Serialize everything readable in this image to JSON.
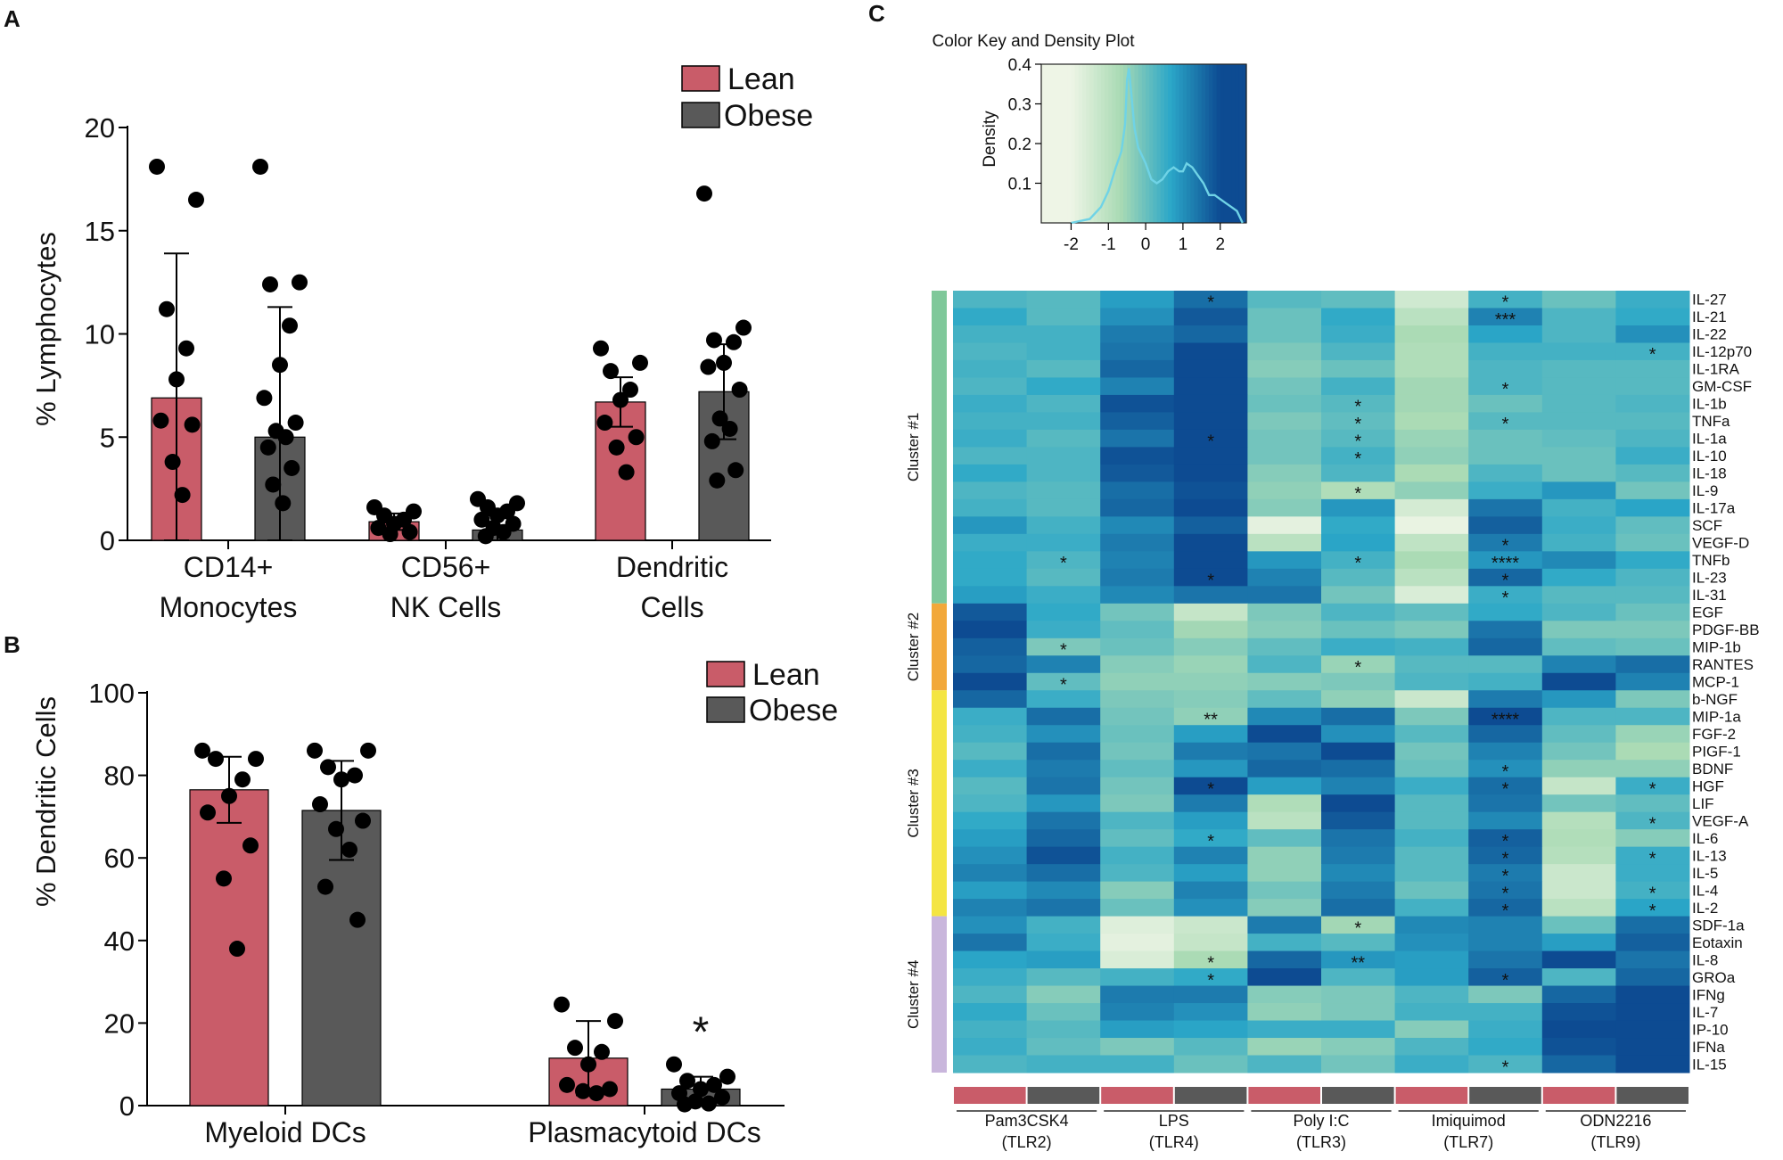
{
  "panel_labels": [
    "A",
    "B",
    "C"
  ],
  "colors": {
    "lean": "#c95c69",
    "obese": "#595959",
    "dot": "#000000"
  },
  "chart_data": [
    {
      "id": "A",
      "type": "bar",
      "ylabel": "% Lymphocytes",
      "ylim": [
        0,
        20
      ],
      "yticks": [
        0,
        5,
        10,
        15,
        20
      ],
      "categories": [
        [
          "CD14+",
          "Monocytes"
        ],
        [
          "CD56+",
          "NK Cells"
        ],
        [
          "Dendritic",
          "Cells"
        ]
      ],
      "legend": [
        "Lean",
        "Obese"
      ],
      "series": [
        {
          "name": "Lean",
          "color": "#c95c69",
          "values": [
            6.9,
            0.9,
            6.7
          ],
          "sd": [
            7.0,
            0.4,
            1.2
          ],
          "points": [
            [
              18.1,
              16.5,
              11.2,
              9.3,
              7.8,
              5.8,
              5.6,
              3.8,
              2.2
            ],
            [
              1.6,
              1.4,
              1.2,
              1.0,
              0.8,
              0.6,
              0.4,
              0.3
            ],
            [
              9.3,
              8.6,
              8.2,
              7.3,
              6.8,
              5.7,
              5.0,
              4.5,
              3.3
            ]
          ]
        },
        {
          "name": "Obese",
          "color": "#595959",
          "values": [
            5.0,
            0.5,
            7.2
          ],
          "sd": [
            6.3,
            0.7,
            2.3
          ],
          "points": [
            [
              18.1,
              12.5,
              12.4,
              10.4,
              8.5,
              6.9,
              5.7,
              5.3,
              5.0,
              4.5,
              3.5,
              2.7,
              1.8
            ],
            [
              2.0,
              1.8,
              1.6,
              1.4,
              1.2,
              1.0,
              0.8,
              0.6,
              0.4,
              0.2
            ],
            [
              16.8,
              10.3,
              9.7,
              9.6,
              8.6,
              8.4,
              7.3,
              5.9,
              5.4,
              4.8,
              3.4,
              2.9
            ]
          ]
        }
      ]
    },
    {
      "id": "B",
      "type": "bar",
      "ylabel": "% Dendritic Cells",
      "ylim": [
        0,
        100
      ],
      "yticks": [
        0,
        20,
        40,
        60,
        80,
        100
      ],
      "categories": [
        [
          "Myeloid DCs"
        ],
        [
          "Plasmacytoid DCs"
        ]
      ],
      "legend": [
        "Lean",
        "Obese"
      ],
      "significance": [
        {
          "category": 1,
          "series": "Obese",
          "label": "*"
        }
      ],
      "series": [
        {
          "name": "Lean",
          "color": "#c95c69",
          "values": [
            76.5,
            11.5
          ],
          "sd": [
            8.0,
            9.0
          ],
          "points": [
            [
              86,
              84,
              84,
              79,
              75,
              71,
              63,
              55,
              38
            ],
            [
              24.5,
              20.5,
              14.0,
              13.0,
              10.0,
              5.0,
              4.0,
              3.5,
              3.0
            ]
          ]
        },
        {
          "name": "Obese",
          "color": "#595959",
          "values": [
            71.5,
            4.0
          ],
          "sd": [
            12.0,
            3.0
          ],
          "points": [
            [
              86,
              86,
              82,
              80,
              79,
              73,
              69,
              67,
              62,
              53,
              45
            ],
            [
              10.0,
              7.0,
              6.0,
              5.0,
              4.0,
              3.0,
              2.0,
              1.0,
              0.5,
              0.3
            ]
          ]
        }
      ]
    },
    {
      "id": "C-density",
      "type": "area",
      "title": "Color Key and Density Plot",
      "ylabel": "Density",
      "xlim": [
        -2.8,
        2.7
      ],
      "ylim": [
        0,
        0.4
      ],
      "xticks": [
        -2,
        -1,
        0,
        1,
        2
      ],
      "xtick_labels": [
        "-2",
        "-1",
        "0",
        "1",
        "2"
      ],
      "yticks": [
        0.1,
        0.2,
        0.3,
        0.4
      ],
      "ytick_labels": [
        "0.1",
        "0.2",
        "0.3",
        "0.4"
      ],
      "x": [
        -2.0,
        -1.5,
        -1.2,
        -1.0,
        -0.8,
        -0.65,
        -0.55,
        -0.5,
        -0.45,
        -0.38,
        -0.3,
        -0.2,
        -0.1,
        0.0,
        0.15,
        0.3,
        0.45,
        0.6,
        0.75,
        0.9,
        1.0,
        1.1,
        1.25,
        1.4,
        1.55,
        1.7,
        1.85,
        2.0,
        2.15,
        2.3,
        2.45,
        2.6
      ],
      "y": [
        0.0,
        0.01,
        0.04,
        0.08,
        0.14,
        0.18,
        0.25,
        0.36,
        0.39,
        0.32,
        0.24,
        0.19,
        0.17,
        0.15,
        0.11,
        0.1,
        0.11,
        0.13,
        0.14,
        0.13,
        0.13,
        0.15,
        0.14,
        0.12,
        0.1,
        0.07,
        0.07,
        0.06,
        0.05,
        0.04,
        0.03,
        0.0
      ]
    },
    {
      "id": "C-heatmap",
      "type": "heatmap",
      "value_range": [
        -2,
        2
      ],
      "color_stops": [
        "#eef5e6",
        "#a9dab4",
        "#2ba7c8",
        "#0d4b92"
      ],
      "rows": [
        "IL-27",
        "IL-21",
        "IL-22",
        "IL-12p70",
        "IL-1RA",
        "GM-CSF",
        "IL-1b",
        "TNFa",
        "IL-1a",
        "IL-10",
        "IL-18",
        "IL-9",
        "IL-17a",
        "SCF",
        "VEGF-D",
        "TNFb",
        "IL-23",
        "IL-31",
        "EGF",
        "PDGF-BB",
        "MIP-1b",
        "RANTES",
        "MCP-1",
        "b-NGF",
        "MIP-1a",
        "FGF-2",
        "PIGF-1",
        "BDNF",
        "HGF",
        "LIF",
        "VEGF-A",
        "IL-6",
        "IL-13",
        "IL-5",
        "IL-4",
        "IL-2",
        "SDF-1a",
        "Eotaxin",
        "IL-8",
        "GROa",
        "IFNg",
        "IL-7",
        "IP-10",
        "IFNa",
        "IL-15"
      ],
      "clusters": [
        {
          "label": "Cluster #1",
          "start": 0,
          "end": 17,
          "color": "#7fc89a"
        },
        {
          "label": "Cluster #2",
          "start": 18,
          "end": 22,
          "color": "#f2a83a"
        },
        {
          "label": "Cluster #3",
          "start": 23,
          "end": 35,
          "color": "#f4e542"
        },
        {
          "label": "Cluster #4",
          "start": 36,
          "end": 44,
          "color": "#c9b6dc"
        }
      ],
      "column_groups": [
        {
          "line1": "Pam3CSK4",
          "line2": "(TLR2)"
        },
        {
          "line1": "LPS",
          "line2": "(TLR4)"
        },
        {
          "line1": "Poly I:C",
          "line2": "(TLR3)"
        },
        {
          "line1": "Imiquimod",
          "line2": "(TLR7)"
        },
        {
          "line1": "ODN2216",
          "line2": "(TLR9)"
        }
      ],
      "column_conditions": [
        "Lean",
        "Obese"
      ],
      "values": [
        [
          0.3,
          0.2,
          0.8,
          1.5,
          0.2,
          0.1,
          -1.4,
          0.4,
          0.0,
          0.5
        ],
        [
          0.6,
          0.2,
          1.0,
          1.8,
          0.0,
          0.6,
          -1.0,
          1.2,
          0.3,
          0.6
        ],
        [
          0.4,
          0.4,
          1.3,
          1.6,
          0.0,
          0.5,
          -0.7,
          0.7,
          0.3,
          1.0
        ],
        [
          0.3,
          0.4,
          1.4,
          2.0,
          -0.2,
          0.3,
          -0.8,
          0.4,
          0.4,
          0.4
        ],
        [
          0.4,
          0.2,
          1.6,
          2.1,
          -0.3,
          0.0,
          -0.8,
          0.3,
          0.2,
          0.2
        ],
        [
          0.3,
          0.6,
          1.2,
          2.7,
          -0.1,
          0.4,
          -0.6,
          0.3,
          0.2,
          0.2
        ],
        [
          0.5,
          0.3,
          1.9,
          2.2,
          0.0,
          0.2,
          -0.6,
          0.0,
          0.2,
          0.3
        ],
        [
          0.4,
          0.4,
          1.7,
          2.2,
          -0.2,
          0.1,
          -0.7,
          0.2,
          0.2,
          0.2
        ],
        [
          0.5,
          0.2,
          1.4,
          2.5,
          -0.1,
          0.2,
          -0.5,
          0.0,
          0.1,
          0.3
        ],
        [
          0.3,
          0.3,
          1.9,
          2.0,
          -0.1,
          0.4,
          -0.4,
          0.0,
          0.0,
          0.5
        ],
        [
          0.6,
          0.3,
          1.8,
          2.0,
          -0.3,
          0.3,
          -0.7,
          0.3,
          0.0,
          0.2
        ],
        [
          0.3,
          0.2,
          1.5,
          1.9,
          -0.4,
          -0.8,
          -0.4,
          0.5,
          0.9,
          -0.1
        ],
        [
          0.4,
          0.2,
          1.6,
          2.1,
          -0.3,
          0.9,
          -1.5,
          1.4,
          0.4,
          0.7
        ],
        [
          0.9,
          0.4,
          1.1,
          1.7,
          -1.8,
          0.6,
          -1.9,
          1.7,
          0.5,
          0.1
        ],
        [
          0.5,
          0.5,
          1.3,
          2.0,
          -1.0,
          0.7,
          -1.1,
          1.3,
          0.4,
          0.0
        ],
        [
          0.6,
          0.3,
          1.2,
          2.3,
          0.9,
          0.4,
          -0.7,
          0.9,
          1.1,
          0.6
        ],
        [
          0.6,
          0.2,
          1.3,
          2.3,
          1.2,
          0.2,
          -1.0,
          1.6,
          0.6,
          0.3
        ],
        [
          0.8,
          0.5,
          1.1,
          1.4,
          1.4,
          -0.1,
          -1.6,
          0.5,
          0.2,
          0.2
        ],
        [
          1.8,
          0.6,
          -0.1,
          -1.2,
          -0.2,
          0.3,
          0.1,
          0.6,
          0.3,
          0.0
        ],
        [
          2.0,
          0.5,
          0.1,
          -0.6,
          -0.3,
          0.0,
          -0.2,
          1.4,
          -0.2,
          -0.2
        ],
        [
          1.7,
          -0.2,
          0.0,
          -0.3,
          0.1,
          0.5,
          0.4,
          1.6,
          0.1,
          0.0
        ],
        [
          1.6,
          1.2,
          -0.3,
          -0.5,
          0.3,
          -0.5,
          0.2,
          0.2,
          1.2,
          1.5
        ],
        [
          2.1,
          0.1,
          -0.4,
          -0.4,
          -0.3,
          -0.2,
          0.3,
          0.4,
          2.3,
          1.2
        ],
        [
          1.6,
          0.5,
          -0.2,
          -0.3,
          0.1,
          -0.4,
          -1.3,
          1.3,
          0.9,
          -0.2
        ],
        [
          0.5,
          1.5,
          -0.1,
          -0.4,
          1.1,
          1.5,
          -0.2,
          2.2,
          0.3,
          0.3
        ],
        [
          0.4,
          1.0,
          0.0,
          0.8,
          2.5,
          1.0,
          0.2,
          1.6,
          0.1,
          -0.5
        ],
        [
          0.2,
          1.5,
          -0.1,
          1.3,
          1.4,
          2.0,
          -0.1,
          1.2,
          -0.1,
          -0.7
        ],
        [
          0.5,
          1.3,
          0.1,
          0.9,
          1.6,
          1.5,
          0.0,
          1.0,
          -0.4,
          -0.4
        ],
        [
          0.2,
          1.4,
          -0.1,
          2.0,
          0.8,
          1.2,
          0.5,
          1.5,
          -1.2,
          0.5
        ],
        [
          0.3,
          0.9,
          -0.2,
          1.3,
          -0.8,
          2.2,
          0.2,
          1.4,
          -0.1,
          0.1
        ],
        [
          0.6,
          1.4,
          0.3,
          0.8,
          -1.0,
          1.8,
          0.2,
          1.1,
          -0.9,
          0.3
        ],
        [
          0.8,
          1.6,
          0.1,
          0.6,
          0.1,
          1.4,
          0.4,
          1.7,
          -0.8,
          -0.3
        ],
        [
          1.0,
          1.9,
          0.4,
          1.2,
          -0.4,
          1.3,
          0.2,
          1.6,
          -0.9,
          0.5
        ],
        [
          1.2,
          1.5,
          0.3,
          0.8,
          -0.4,
          1.1,
          0.2,
          1.3,
          -1.3,
          0.5
        ],
        [
          0.8,
          1.1,
          -0.3,
          1.2,
          -0.1,
          1.3,
          0.0,
          1.4,
          -1.3,
          0.4
        ],
        [
          1.2,
          1.4,
          0.0,
          1.0,
          -0.3,
          1.5,
          0.4,
          1.6,
          -1.0,
          0.7
        ],
        [
          1.0,
          0.4,
          -1.7,
          -1.3,
          1.3,
          -0.6,
          1.1,
          1.2,
          0.0,
          1.5
        ],
        [
          1.4,
          0.5,
          -1.8,
          -1.2,
          0.4,
          0.2,
          1.0,
          1.2,
          0.8,
          1.7
        ],
        [
          0.7,
          0.8,
          -1.6,
          -0.7,
          1.6,
          0.9,
          0.8,
          1.4,
          2.1,
          1.4
        ],
        [
          0.5,
          0.2,
          0.4,
          0.6,
          2.5,
          0.3,
          0.8,
          1.7,
          0.3,
          1.6
        ],
        [
          0.3,
          -0.3,
          1.3,
          1.3,
          -0.3,
          -0.2,
          0.3,
          -0.2,
          1.6,
          2.4
        ],
        [
          0.6,
          0.0,
          1.2,
          1.0,
          -0.4,
          -0.2,
          0.4,
          0.4,
          1.9,
          2.0
        ],
        [
          0.4,
          0.2,
          0.8,
          0.7,
          0.5,
          0.5,
          -0.3,
          0.5,
          2.0,
          2.1
        ],
        [
          0.5,
          0.1,
          -0.2,
          0.2,
          -0.5,
          -0.3,
          0.3,
          0.6,
          1.9,
          2.4
        ],
        [
          0.3,
          0.4,
          0.4,
          0.0,
          0.3,
          -0.1,
          0.5,
          0.3,
          1.6,
          2.0
        ]
      ],
      "significance": [
        {
          "row": 0,
          "col": 3,
          "label": "*"
        },
        {
          "row": 0,
          "col": 7,
          "label": "*"
        },
        {
          "row": 1,
          "col": 7,
          "label": "***"
        },
        {
          "row": 3,
          "col": 9,
          "label": "*"
        },
        {
          "row": 5,
          "col": 7,
          "label": "*"
        },
        {
          "row": 6,
          "col": 5,
          "label": "*"
        },
        {
          "row": 7,
          "col": 5,
          "label": "*"
        },
        {
          "row": 7,
          "col": 7,
          "label": "*"
        },
        {
          "row": 8,
          "col": 3,
          "label": "*"
        },
        {
          "row": 8,
          "col": 5,
          "label": "*"
        },
        {
          "row": 9,
          "col": 5,
          "label": "*"
        },
        {
          "row": 11,
          "col": 5,
          "label": "*"
        },
        {
          "row": 14,
          "col": 7,
          "label": "*"
        },
        {
          "row": 15,
          "col": 1,
          "label": "*"
        },
        {
          "row": 15,
          "col": 5,
          "label": "*"
        },
        {
          "row": 15,
          "col": 7,
          "label": "****"
        },
        {
          "row": 16,
          "col": 3,
          "label": "*"
        },
        {
          "row": 16,
          "col": 7,
          "label": "*"
        },
        {
          "row": 17,
          "col": 7,
          "label": "*"
        },
        {
          "row": 20,
          "col": 1,
          "label": "*"
        },
        {
          "row": 21,
          "col": 5,
          "label": "*"
        },
        {
          "row": 22,
          "col": 1,
          "label": "*"
        },
        {
          "row": 24,
          "col": 3,
          "label": "**"
        },
        {
          "row": 24,
          "col": 7,
          "label": "****"
        },
        {
          "row": 27,
          "col": 7,
          "label": "*"
        },
        {
          "row": 28,
          "col": 3,
          "label": "*"
        },
        {
          "row": 28,
          "col": 7,
          "label": "*"
        },
        {
          "row": 28,
          "col": 9,
          "label": "*"
        },
        {
          "row": 30,
          "col": 9,
          "label": "*"
        },
        {
          "row": 31,
          "col": 3,
          "label": "*"
        },
        {
          "row": 31,
          "col": 7,
          "label": "*"
        },
        {
          "row": 32,
          "col": 7,
          "label": "*"
        },
        {
          "row": 32,
          "col": 9,
          "label": "*"
        },
        {
          "row": 33,
          "col": 7,
          "label": "*"
        },
        {
          "row": 34,
          "col": 7,
          "label": "*"
        },
        {
          "row": 34,
          "col": 9,
          "label": "*"
        },
        {
          "row": 35,
          "col": 7,
          "label": "*"
        },
        {
          "row": 35,
          "col": 9,
          "label": "*"
        },
        {
          "row": 36,
          "col": 5,
          "label": "*"
        },
        {
          "row": 38,
          "col": 3,
          "label": "*"
        },
        {
          "row": 38,
          "col": 5,
          "label": "**"
        },
        {
          "row": 39,
          "col": 3,
          "label": "*"
        },
        {
          "row": 39,
          "col": 7,
          "label": "*"
        },
        {
          "row": 44,
          "col": 7,
          "label": "*"
        }
      ]
    }
  ]
}
